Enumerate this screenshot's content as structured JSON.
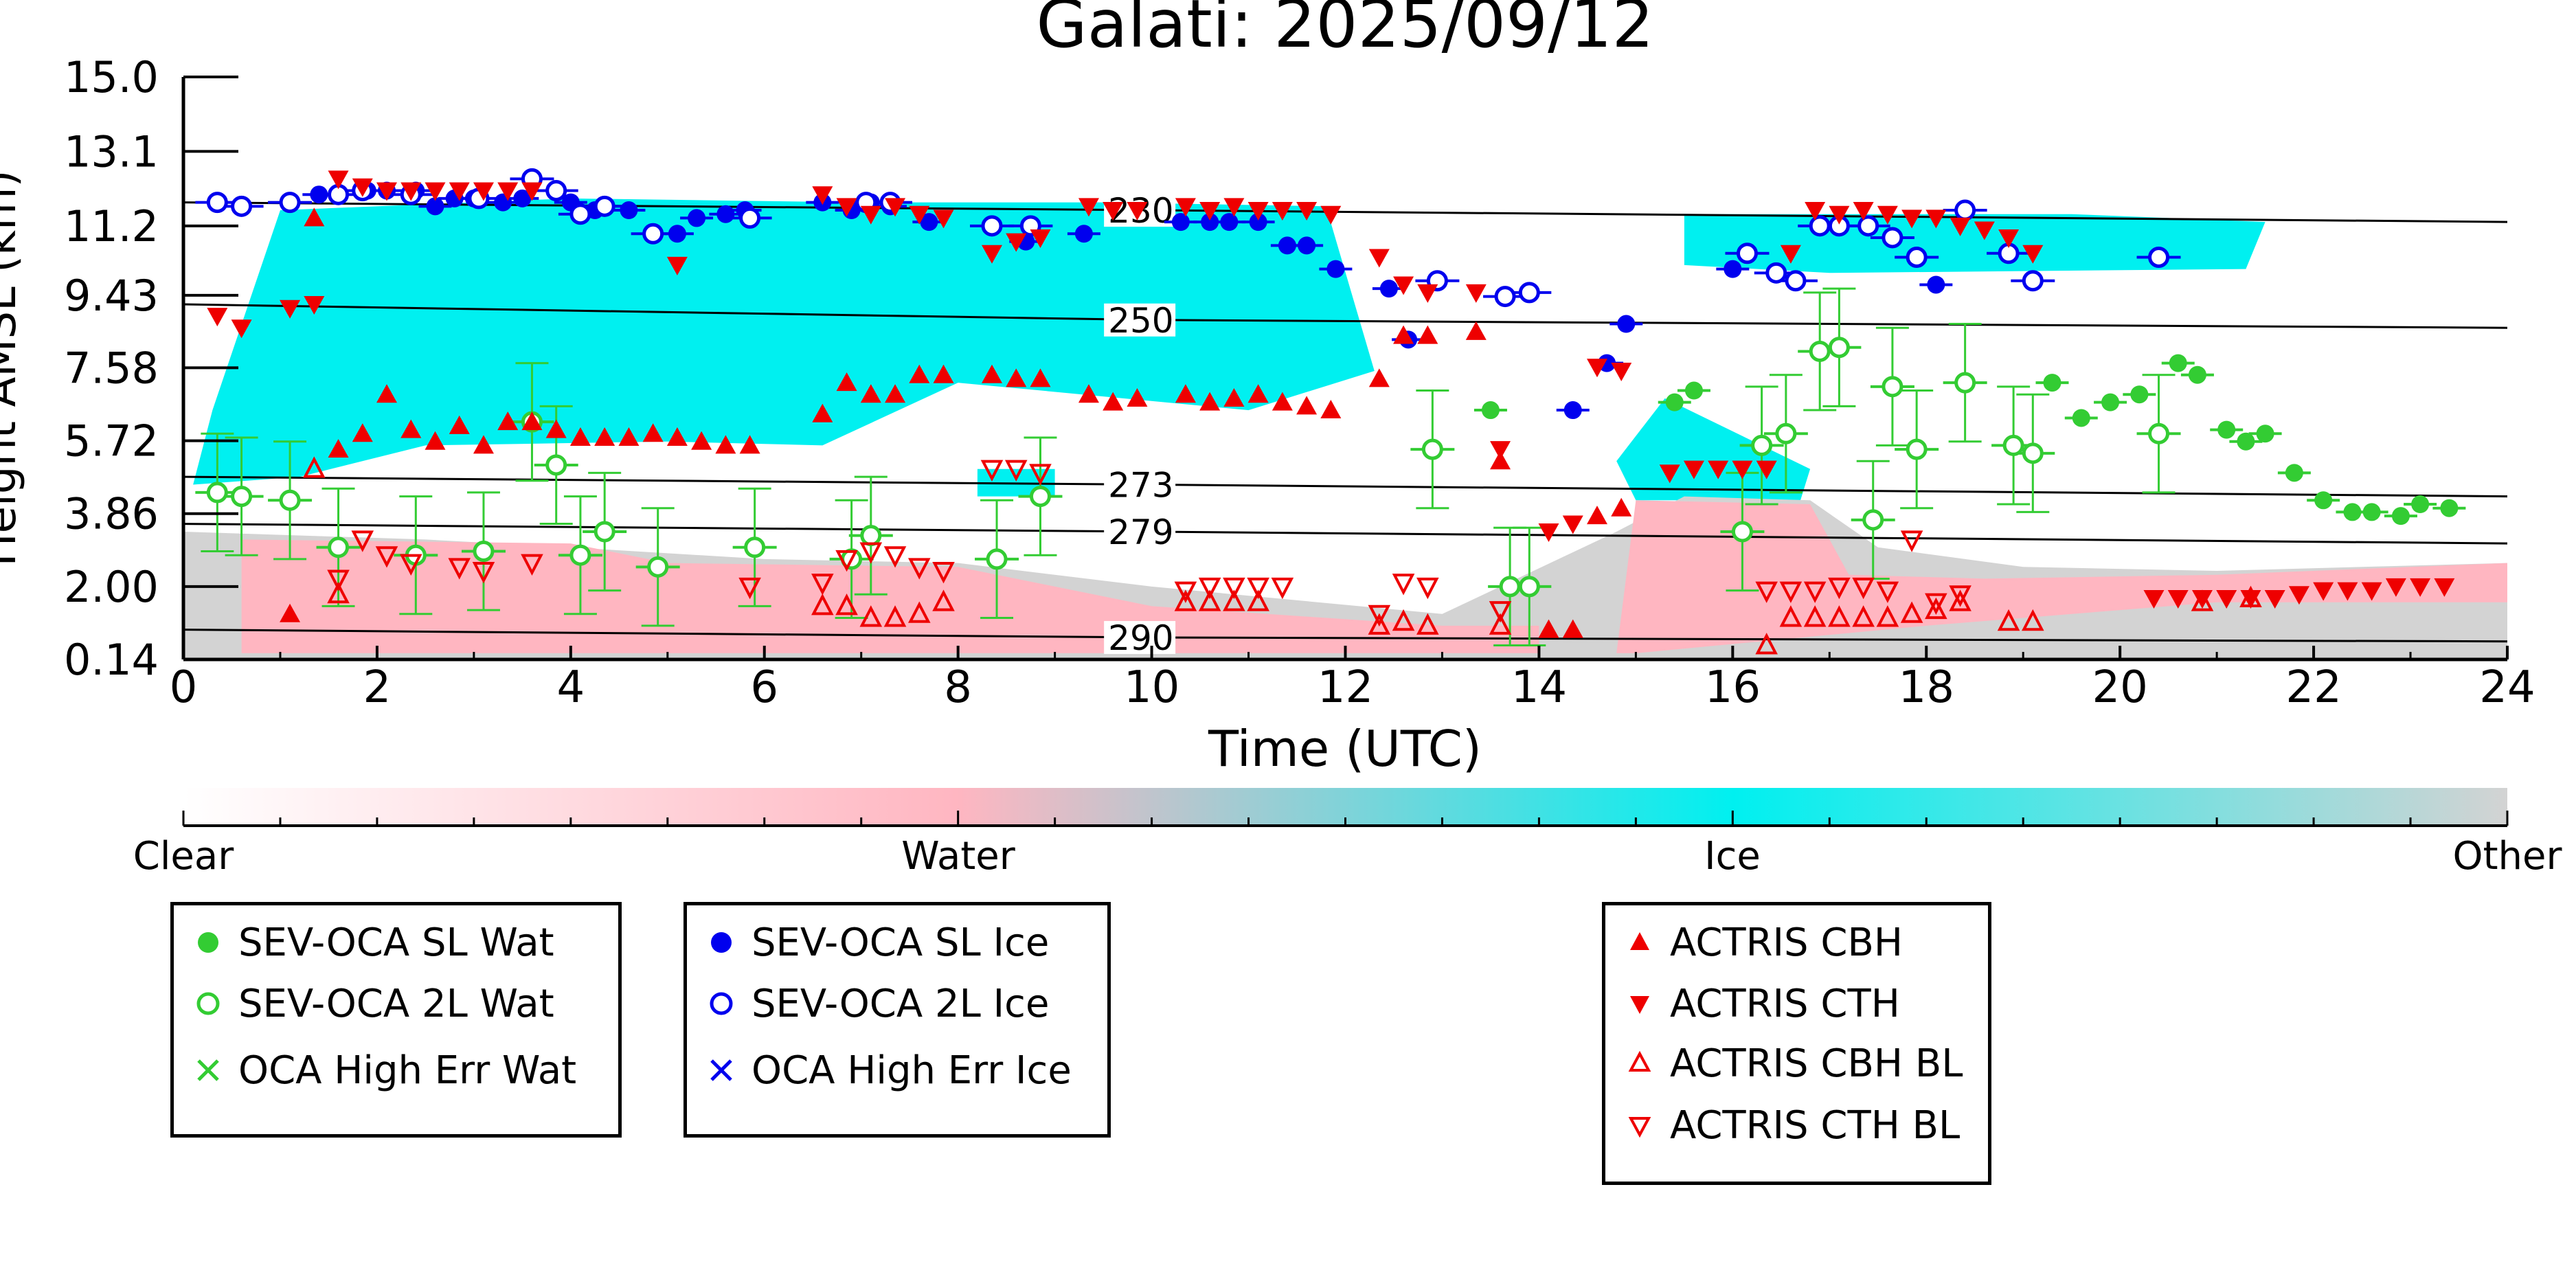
{
  "chart_data": {
    "type": "scatter",
    "title": "Galati: 2025/09/12",
    "xlabel": "Time (UTC)",
    "ylabel": "Height AMSL (km)",
    "xlim": [
      0,
      24
    ],
    "ylim": [
      0.14,
      15.0
    ],
    "xticks": [
      0,
      2,
      4,
      6,
      8,
      10,
      12,
      14,
      16,
      18,
      20,
      22,
      24
    ],
    "yticks": [
      0.14,
      2.0,
      3.86,
      5.72,
      7.58,
      9.43,
      11.2,
      13.1,
      15.0
    ],
    "ytick_labels": [
      "0.14",
      "2.00",
      "3.86",
      "5.72",
      "7.58",
      "9.43",
      "11.2",
      "13.1",
      "15.0"
    ],
    "grid": false,
    "colorbar": {
      "labels": [
        "Clear",
        "Water",
        "Ice",
        "Other"
      ],
      "colors": [
        "#ffffff",
        "#ffb6c1",
        "#00f0f0",
        "#d3d3d3"
      ]
    },
    "isotherms": [
      {
        "label": "230",
        "points": [
          [
            0,
            11.8
          ],
          [
            10,
            11.6
          ],
          [
            24,
            11.3
          ]
        ]
      },
      {
        "label": "250",
        "points": [
          [
            0,
            9.2
          ],
          [
            10,
            8.8
          ],
          [
            24,
            8.6
          ]
        ]
      },
      {
        "label": "273",
        "points": [
          [
            0,
            4.8
          ],
          [
            10,
            4.6
          ],
          [
            24,
            4.3
          ]
        ]
      },
      {
        "label": "279",
        "points": [
          [
            0,
            3.6
          ],
          [
            10,
            3.4
          ],
          [
            24,
            3.1
          ]
        ]
      },
      {
        "label": "290",
        "points": [
          [
            0,
            0.9
          ],
          [
            10,
            0.7
          ],
          [
            24,
            0.6
          ]
        ]
      }
    ],
    "cloud_regions": [
      {
        "phase": "Ice",
        "color": "#00f0f0",
        "polygon": [
          [
            0.1,
            4.6
          ],
          [
            0.3,
            6.5
          ],
          [
            1.0,
            11.6
          ],
          [
            4.0,
            11.9
          ],
          [
            7.0,
            11.8
          ],
          [
            9.5,
            11.8
          ],
          [
            11.8,
            11.7
          ],
          [
            12.3,
            7.5
          ],
          [
            11.0,
            6.5
          ],
          [
            8.0,
            7.2
          ],
          [
            6.6,
            5.6
          ],
          [
            5.0,
            5.7
          ],
          [
            2.5,
            5.6
          ],
          [
            1.2,
            4.8
          ],
          [
            0.1,
            4.6
          ]
        ]
      },
      {
        "phase": "Ice",
        "color": "#00f0f0",
        "polygon": [
          [
            8.2,
            5.0
          ],
          [
            9.0,
            5.0
          ],
          [
            9.0,
            4.3
          ],
          [
            8.2,
            4.3
          ]
        ]
      },
      {
        "phase": "Ice",
        "color": "#00f0f0",
        "polygon": [
          [
            15.5,
            11.5
          ],
          [
            17.5,
            11.5
          ],
          [
            19.5,
            11.5
          ],
          [
            21.5,
            11.3
          ],
          [
            21.3,
            10.1
          ],
          [
            17.0,
            10.0
          ],
          [
            15.5,
            10.2
          ]
        ]
      },
      {
        "phase": "Ice",
        "color": "#00f0f0",
        "polygon": [
          [
            14.8,
            5.2
          ],
          [
            15.3,
            6.8
          ],
          [
            16.8,
            5.0
          ],
          [
            16.7,
            4.2
          ],
          [
            15.0,
            4.2
          ]
        ]
      },
      {
        "phase": "Other",
        "color": "#d3d3d3",
        "polygon": [
          [
            0,
            0.14
          ],
          [
            0,
            3.4
          ],
          [
            2.5,
            3.2
          ],
          [
            4.0,
            3.0
          ],
          [
            6.0,
            2.7
          ],
          [
            8.0,
            2.6
          ],
          [
            10.0,
            2.0
          ],
          [
            13.0,
            1.3
          ],
          [
            14.8,
            3.4
          ],
          [
            15.5,
            4.3
          ],
          [
            16.8,
            4.2
          ],
          [
            17.5,
            3.0
          ],
          [
            19.0,
            2.5
          ],
          [
            21.0,
            2.4
          ],
          [
            24.0,
            2.6
          ],
          [
            24.0,
            0.14
          ]
        ]
      },
      {
        "phase": "Water",
        "color": "#ffb6c1",
        "polygon": [
          [
            0.6,
            1.0
          ],
          [
            0.6,
            3.2
          ],
          [
            4.0,
            3.1
          ],
          [
            5.0,
            2.6
          ],
          [
            8.0,
            2.5
          ],
          [
            10.0,
            1.5
          ],
          [
            13.0,
            1.0
          ],
          [
            14.0,
            1.0
          ],
          [
            14.0,
            0.3
          ],
          [
            0.6,
            0.3
          ]
        ]
      },
      {
        "phase": "Water",
        "color": "#ffb6c1",
        "polygon": [
          [
            14.8,
            0.3
          ],
          [
            15.0,
            4.2
          ],
          [
            16.8,
            4.1
          ],
          [
            17.2,
            2.3
          ],
          [
            18.6,
            2.2
          ],
          [
            21.0,
            2.3
          ],
          [
            24.0,
            2.6
          ],
          [
            24.0,
            1.6
          ],
          [
            21.0,
            1.6
          ],
          [
            18.0,
            1.0
          ],
          [
            15.0,
            0.3
          ]
        ]
      }
    ],
    "series": [
      {
        "name": "SEV-OCA SL Wat",
        "marker": "circle-filled",
        "color": "#33cc33",
        "x": [
          13.5,
          15.4,
          15.6,
          19.3,
          19.6,
          19.9,
          20.2,
          20.6,
          20.8,
          21.1,
          21.3,
          21.5,
          21.8,
          22.1,
          22.4,
          22.6,
          22.9,
          23.1,
          23.4
        ],
        "y": [
          6.5,
          6.7,
          7.0,
          7.2,
          6.3,
          6.7,
          6.9,
          7.7,
          7.4,
          6.0,
          5.7,
          5.9,
          4.9,
          4.2,
          3.9,
          3.9,
          3.8,
          4.1,
          4.0
        ]
      },
      {
        "name": "SEV-OCA 2L Wat",
        "marker": "circle-open",
        "color": "#33cc33",
        "x": [
          0.35,
          0.6,
          1.1,
          1.6,
          2.4,
          3.1,
          3.6,
          3.85,
          4.1,
          4.35,
          4.9,
          5.9,
          6.9,
          7.1,
          8.4,
          8.85,
          12.9,
          13.7,
          13.9,
          16.1,
          16.3,
          16.55,
          16.9,
          17.1,
          17.45,
          17.65,
          17.9,
          18.4,
          18.9,
          19.1,
          20.4
        ],
        "y": [
          4.4,
          4.3,
          4.2,
          3.0,
          2.8,
          2.9,
          6.2,
          5.1,
          2.8,
          3.4,
          2.5,
          3.0,
          2.7,
          3.3,
          2.7,
          4.3,
          5.5,
          2.0,
          2.0,
          3.4,
          5.6,
          5.9,
          8.0,
          8.1,
          3.7,
          7.1,
          5.5,
          7.2,
          5.6,
          5.4,
          5.9
        ]
      },
      {
        "name": "OCA High Err Wat",
        "marker": "x",
        "color": "#33cc33",
        "x": [],
        "y": []
      },
      {
        "name": "SEV-OCA SL Ice",
        "marker": "circle-filled",
        "color": "#0000ee",
        "x": [
          1.4,
          1.9,
          2.1,
          2.4,
          2.6,
          2.8,
          3.0,
          3.3,
          3.5,
          4.0,
          4.25,
          4.6,
          5.1,
          5.3,
          5.6,
          5.8,
          6.6,
          6.9,
          7.1,
          7.3,
          7.7,
          8.7,
          9.3,
          10.3,
          10.6,
          10.8,
          11.1,
          11.4,
          11.6,
          11.9,
          12.45,
          12.65,
          14.35,
          14.7,
          14.9,
          16.0,
          18.1
        ],
        "y": [
          12.0,
          12.1,
          12.1,
          12.1,
          11.7,
          11.9,
          11.9,
          11.8,
          11.9,
          11.8,
          11.6,
          11.6,
          11.0,
          11.4,
          11.5,
          11.6,
          11.8,
          11.6,
          11.8,
          11.7,
          11.3,
          10.8,
          11.0,
          11.3,
          11.3,
          11.3,
          11.3,
          10.7,
          10.7,
          10.1,
          9.6,
          8.3,
          6.5,
          7.7,
          8.7,
          10.1,
          9.7
        ]
      },
      {
        "name": "SEV-OCA 2L Ice",
        "marker": "circle-open",
        "color": "#0000ee",
        "x": [
          0.35,
          0.6,
          1.1,
          1.6,
          1.85,
          2.35,
          3.05,
          3.6,
          3.85,
          4.1,
          4.35,
          4.85,
          5.85,
          7.05,
          7.3,
          8.35,
          8.75,
          12.95,
          13.65,
          13.9,
          16.15,
          16.45,
          16.65,
          16.9,
          17.1,
          17.4,
          17.65,
          17.9,
          18.4,
          18.85,
          19.1,
          20.4
        ],
        "y": [
          11.8,
          11.7,
          11.8,
          12.0,
          12.1,
          12.0,
          11.9,
          12.4,
          12.1,
          11.5,
          11.7,
          11.0,
          11.4,
          11.8,
          11.8,
          11.2,
          11.2,
          9.8,
          9.4,
          9.5,
          10.5,
          10.0,
          9.8,
          11.2,
          11.2,
          11.2,
          10.9,
          10.4,
          11.6,
          10.5,
          9.8,
          10.4
        ]
      },
      {
        "name": "OCA High Err Ice",
        "marker": "x",
        "color": "#0000ee",
        "x": [],
        "y": []
      },
      {
        "name": "ACTRIS CBH",
        "marker": "triangle-up-filled",
        "color": "#ee0000",
        "x": [
          1.1,
          1.35,
          1.6,
          1.85,
          2.1,
          2.35,
          2.6,
          2.85,
          3.1,
          3.35,
          3.6,
          3.85,
          4.1,
          4.35,
          4.6,
          4.85,
          5.1,
          5.35,
          5.6,
          5.85,
          6.6,
          6.85,
          7.1,
          7.35,
          7.6,
          7.85,
          8.35,
          8.6,
          8.85,
          9.35,
          9.6,
          9.85,
          10.35,
          10.6,
          10.85,
          11.1,
          11.35,
          11.6,
          11.85,
          12.35,
          12.6,
          12.85,
          13.35,
          13.6,
          14.1,
          14.35,
          14.6,
          14.85
        ],
        "y": [
          1.3,
          11.4,
          5.5,
          5.9,
          6.9,
          6.0,
          5.7,
          6.1,
          5.6,
          6.2,
          6.2,
          6.0,
          5.8,
          5.8,
          5.8,
          5.9,
          5.8,
          5.7,
          5.6,
          5.6,
          6.4,
          7.2,
          6.9,
          6.9,
          7.4,
          7.4,
          7.4,
          7.3,
          7.3,
          6.9,
          6.7,
          6.8,
          6.9,
          6.7,
          6.8,
          6.9,
          6.7,
          6.6,
          6.5,
          7.3,
          8.4,
          8.4,
          8.5,
          5.2,
          0.9,
          0.9,
          3.8,
          4.0
        ]
      },
      {
        "name": "ACTRIS CTH",
        "marker": "triangle-down-filled",
        "color": "#ee0000",
        "x": [
          0.35,
          0.6,
          1.1,
          1.35,
          1.6,
          1.85,
          2.1,
          2.35,
          2.6,
          2.85,
          3.1,
          3.35,
          3.6,
          5.1,
          6.6,
          6.85,
          7.1,
          7.35,
          7.6,
          7.85,
          8.35,
          8.6,
          8.85,
          9.35,
          9.6,
          9.85,
          10.35,
          10.6,
          10.85,
          11.1,
          11.35,
          11.6,
          11.85,
          12.35,
          12.6,
          12.85,
          13.35,
          13.6,
          14.1,
          14.35,
          14.6,
          14.85,
          15.35,
          15.6,
          15.85,
          16.1,
          16.35,
          16.6,
          16.85,
          17.1,
          17.35,
          17.6,
          17.85,
          18.1,
          18.35,
          18.6,
          18.85,
          19.1,
          20.35,
          20.6,
          20.85,
          21.1,
          21.35,
          21.6,
          21.85,
          22.1,
          22.35,
          22.6,
          22.85,
          23.1,
          23.35
        ],
        "y": [
          8.9,
          8.6,
          9.1,
          9.2,
          12.4,
          12.2,
          12.1,
          12.1,
          12.1,
          12.1,
          12.1,
          12.1,
          12.1,
          10.2,
          12.0,
          11.7,
          11.5,
          11.7,
          11.5,
          11.4,
          10.5,
          10.8,
          10.9,
          11.7,
          11.6,
          11.6,
          11.7,
          11.6,
          11.7,
          11.6,
          11.6,
          11.6,
          11.5,
          10.4,
          9.7,
          9.5,
          9.5,
          5.5,
          3.4,
          3.6,
          7.6,
          7.5,
          4.9,
          5.0,
          5.0,
          5.0,
          5.0,
          10.5,
          11.6,
          11.5,
          11.6,
          11.5,
          11.4,
          11.4,
          11.2,
          11.1,
          10.9,
          10.5,
          1.7,
          1.7,
          1.7,
          1.7,
          1.7,
          1.7,
          1.8,
          1.9,
          1.9,
          1.9,
          2.0,
          2.0,
          2.0
        ]
      },
      {
        "name": "ACTRIS CBH BL",
        "marker": "triangle-up-open",
        "color": "#ee0000",
        "x": [
          1.35,
          1.6,
          6.6,
          6.85,
          7.1,
          7.35,
          7.6,
          7.85,
          10.35,
          10.6,
          10.85,
          11.1,
          12.35,
          12.6,
          12.85,
          13.6,
          16.35,
          16.6,
          16.85,
          17.1,
          17.35,
          17.6,
          17.85,
          18.1,
          18.35,
          18.85,
          19.1,
          20.85,
          21.35
        ],
        "y": [
          5.0,
          1.8,
          1.5,
          1.5,
          1.2,
          1.2,
          1.3,
          1.6,
          1.6,
          1.6,
          1.6,
          1.6,
          1.0,
          1.1,
          1.0,
          1.0,
          0.5,
          1.2,
          1.2,
          1.2,
          1.2,
          1.2,
          1.3,
          1.4,
          1.6,
          1.1,
          1.1,
          1.6,
          1.7
        ]
      },
      {
        "name": "ACTRIS CTH BL",
        "marker": "triangle-down-open",
        "color": "#ee0000",
        "x": [
          1.6,
          1.85,
          2.1,
          2.35,
          2.85,
          3.1,
          3.6,
          5.85,
          6.6,
          6.85,
          7.1,
          7.35,
          7.6,
          7.85,
          8.35,
          8.6,
          8.85,
          10.35,
          10.6,
          10.85,
          11.1,
          11.35,
          12.35,
          12.6,
          12.85,
          13.6,
          16.35,
          16.6,
          16.85,
          17.1,
          17.35,
          17.6,
          17.85,
          18.1,
          18.35
        ],
        "y": [
          2.2,
          3.2,
          2.8,
          2.6,
          2.5,
          2.4,
          2.6,
          2.0,
          2.1,
          2.7,
          2.9,
          2.8,
          2.5,
          2.4,
          5.0,
          5.0,
          4.9,
          1.9,
          2.0,
          2.0,
          2.0,
          2.0,
          1.3,
          2.1,
          2.0,
          1.4,
          1.9,
          1.9,
          1.9,
          2.0,
          2.0,
          1.9,
          3.2,
          1.6,
          1.8
        ]
      }
    ]
  },
  "legends": [
    {
      "items": [
        {
          "label": "SEV-OCA SL Wat"
        },
        {
          "label": "SEV-OCA 2L Wat"
        },
        {
          "label": "OCA High Err Wat"
        }
      ]
    },
    {
      "items": [
        {
          "label": "SEV-OCA SL Ice"
        },
        {
          "label": "SEV-OCA 2L Ice"
        },
        {
          "label": "OCA High Err Ice"
        }
      ]
    },
    {
      "items": [
        {
          "label": "ACTRIS CBH"
        },
        {
          "label": "ACTRIS CTH"
        },
        {
          "label": "ACTRIS CBH BL"
        },
        {
          "label": "ACTRIS CTH BL"
        }
      ]
    }
  ]
}
